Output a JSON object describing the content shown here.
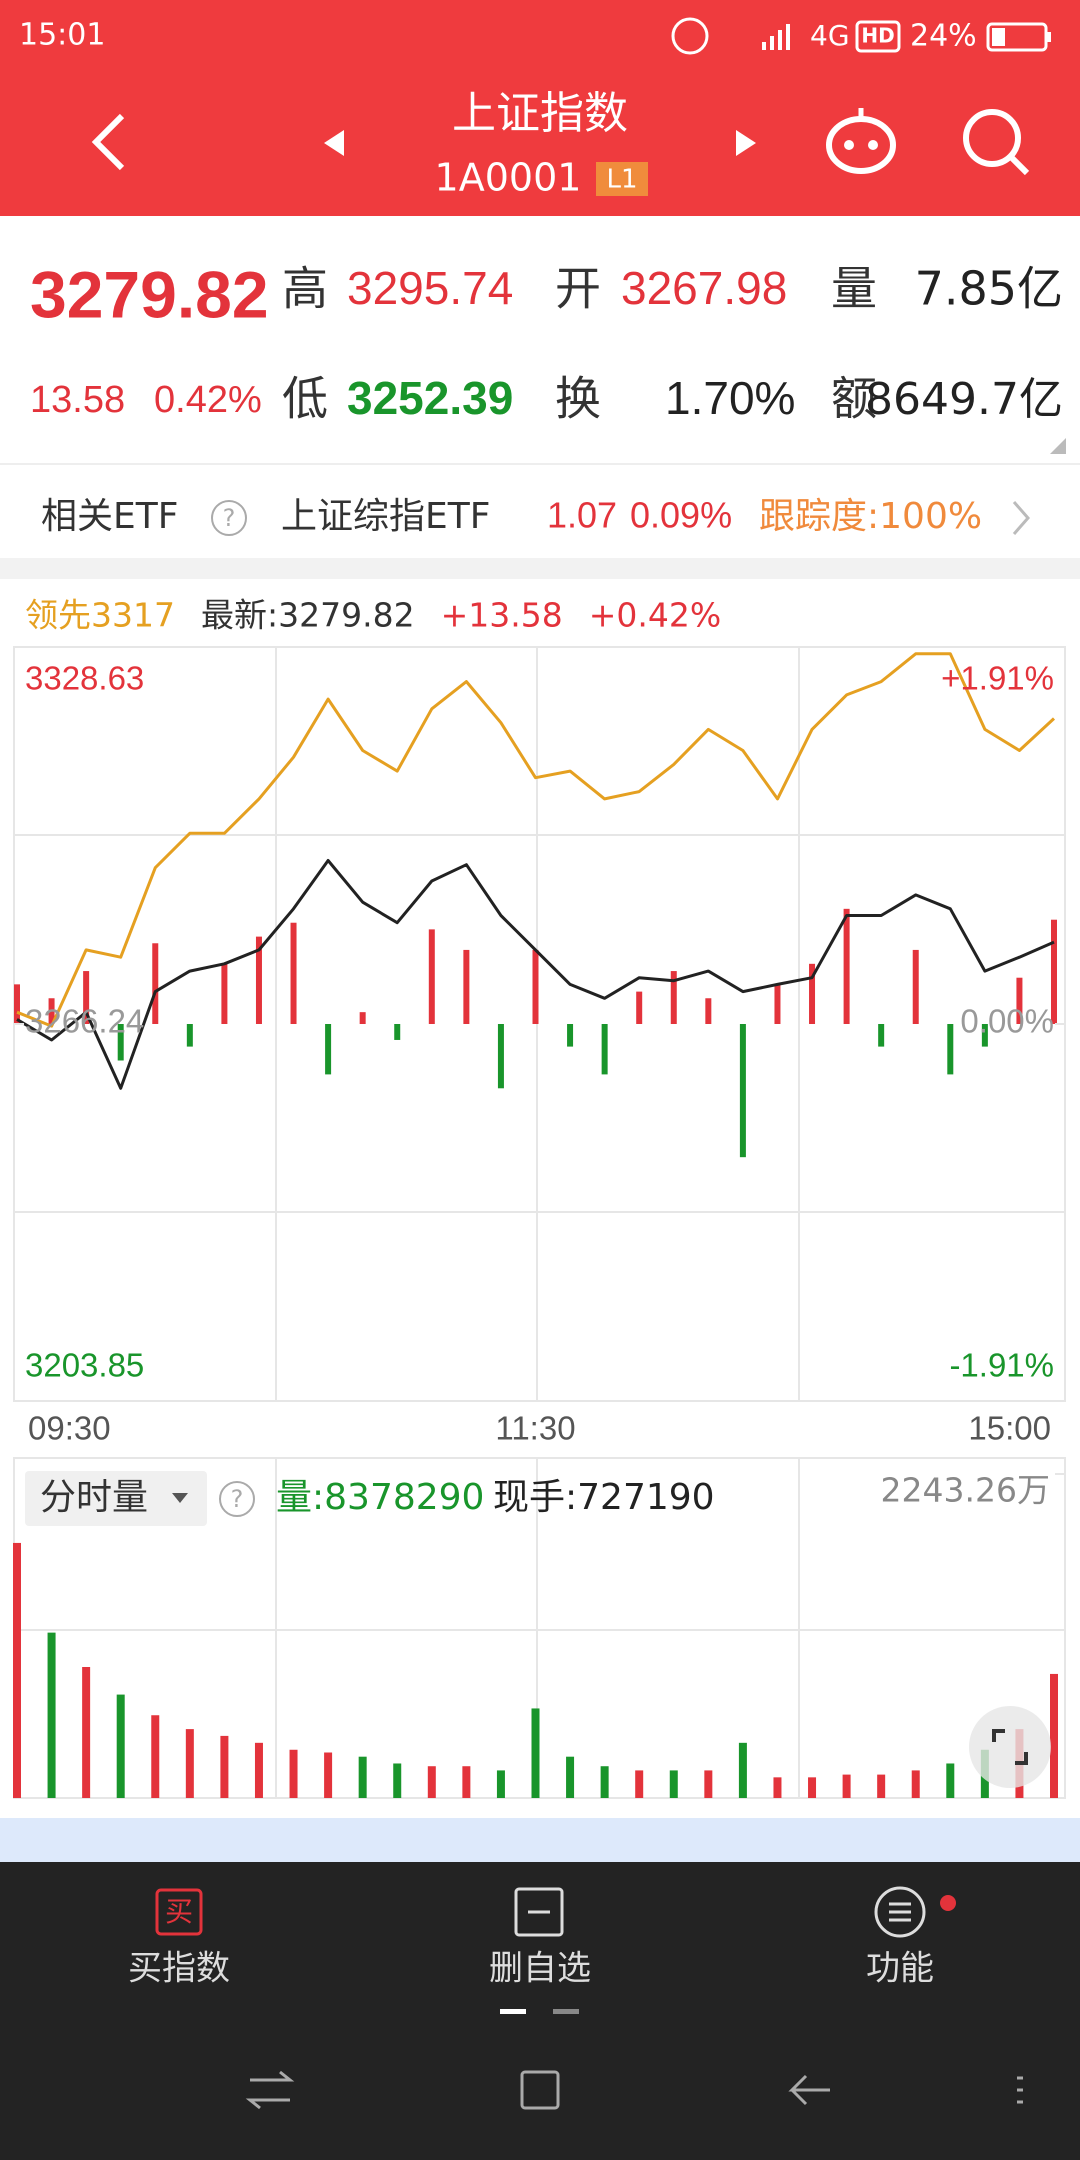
{
  "status_bar": {
    "time": "15:01",
    "network": "4G",
    "hd": "HD",
    "battery": "24%"
  },
  "header": {
    "title": "上证指数",
    "code": "1A0001",
    "badge": "L1"
  },
  "quote": {
    "price": "3279.82",
    "change": "13.58",
    "change_pct": "0.42%",
    "high_label": "高",
    "high": "3295.74",
    "open_label": "开",
    "open": "3267.98",
    "volume_label": "量",
    "volume": "7.85亿",
    "low_label": "低",
    "low": "3252.39",
    "turnover_label": "换",
    "turnover": "1.70%",
    "amount_label": "额",
    "amount": "8649.7亿"
  },
  "etf": {
    "label": "相关ETF",
    "help": "?",
    "name": "上证综指ETF",
    "price": "1.07",
    "pct": "0.09%",
    "tracking": "跟踪度:100%"
  },
  "chart_data": [
    {
      "type": "line",
      "header": [
        {
          "text": "领先3317",
          "color": "#e5a021"
        },
        {
          "text": "最新:3279.82",
          "color": "#333333"
        },
        {
          "text": "+13.58",
          "color": "#e3333b"
        },
        {
          "text": "+0.42%",
          "color": "#e3333b"
        }
      ],
      "categories": [
        "09:30",
        null,
        null,
        null,
        null,
        null,
        null,
        null,
        null,
        null,
        null,
        null,
        null,
        null,
        null,
        "11:30",
        null,
        null,
        null,
        null,
        null,
        null,
        null,
        null,
        null,
        null,
        null,
        null,
        null,
        null,
        "15:00"
      ],
      "ylim": [
        3203.85,
        3328.63
      ],
      "yticks": [
        3203.85,
        3266.24,
        3328.63
      ],
      "y2lim": [
        -1.91,
        1.91
      ],
      "y2ticks": [
        {
          "value": -1.91,
          "label": "-1.91%"
        },
        {
          "value": 0,
          "label": "0.00%"
        },
        {
          "value": 1.91,
          "label": "+1.91%"
        }
      ],
      "up_color": "#e3333b",
      "down_color": "#19952b",
      "flat_color": "#999999",
      "series": [
        {
          "type": "line",
          "color": "#e5a021",
          "values": [
            3268.2,
            3265.9,
            3278.5,
            3277.3,
            3292.1,
            3297.8,
            3297.8,
            3303.5,
            3310.4,
            3320.0,
            3311.5,
            3308.1,
            3318.4,
            3322.9,
            3316.1,
            3307.0,
            3308.1,
            3303.5,
            3304.7,
            3309.2,
            3315.0,
            3311.5,
            3303.5,
            3315.0,
            3320.7,
            3322.9,
            3327.5,
            3327.5,
            3315.0,
            3311.5,
            3316.8
          ]
        },
        {
          "type": "line",
          "color": "#222222",
          "values": [
            3267.0,
            3263.6,
            3268.2,
            3255.6,
            3271.6,
            3275.0,
            3276.2,
            3278.5,
            3285.3,
            3293.3,
            3286.4,
            3283.0,
            3289.9,
            3292.6,
            3284.2,
            3278.5,
            3272.8,
            3270.5,
            3273.9,
            3273.4,
            3275.0,
            3271.6,
            3272.8,
            3273.9,
            3284.2,
            3284.2,
            3287.6,
            3285.3,
            3275.0,
            3277.3,
            3279.8
          ]
        },
        {
          "type": "bar",
          "color": "#e3333b",
          "down_color": "#19952b",
          "values": [
            3272.8,
            3270.5,
            3275.0,
            3260.2,
            3279.6,
            3262.5,
            3276.2,
            3280.7,
            3283.0,
            3257.9,
            3268.2,
            3263.6,
            3281.9,
            3278.5,
            3255.6,
            3278.5,
            3262.5,
            3257.9,
            3271.6,
            3275.0,
            3270.5,
            3244.2,
            3272.8,
            3276.2,
            3285.3,
            3262.5,
            3278.5,
            3257.9,
            3262.5,
            3273.9,
            3283.5
          ]
        }
      ]
    },
    {
      "type": "bar",
      "title": "分时量",
      "help": "?",
      "volume_text": "量:8378290",
      "hand_text": "现手:727190",
      "ylim": [
        0,
        2243.26
      ],
      "yticks": [
        {
          "value": 2243.26,
          "label": "2243.26万"
        }
      ],
      "up_color": "#e3333b",
      "down_color": "#19952b",
      "values": [
        1766,
        1145,
        907,
        716,
        573,
        477,
        430,
        382,
        334,
        315,
        286,
        239,
        220,
        220,
        191,
        620,
        286,
        220,
        191,
        191,
        191,
        382,
        143,
        143,
        162,
        162,
        191,
        239,
        334,
        477,
        859
      ]
    }
  ],
  "nav": [
    {
      "icon": "买",
      "label": "买指数"
    },
    {
      "label": "删自选"
    },
    {
      "label": "功能"
    }
  ]
}
